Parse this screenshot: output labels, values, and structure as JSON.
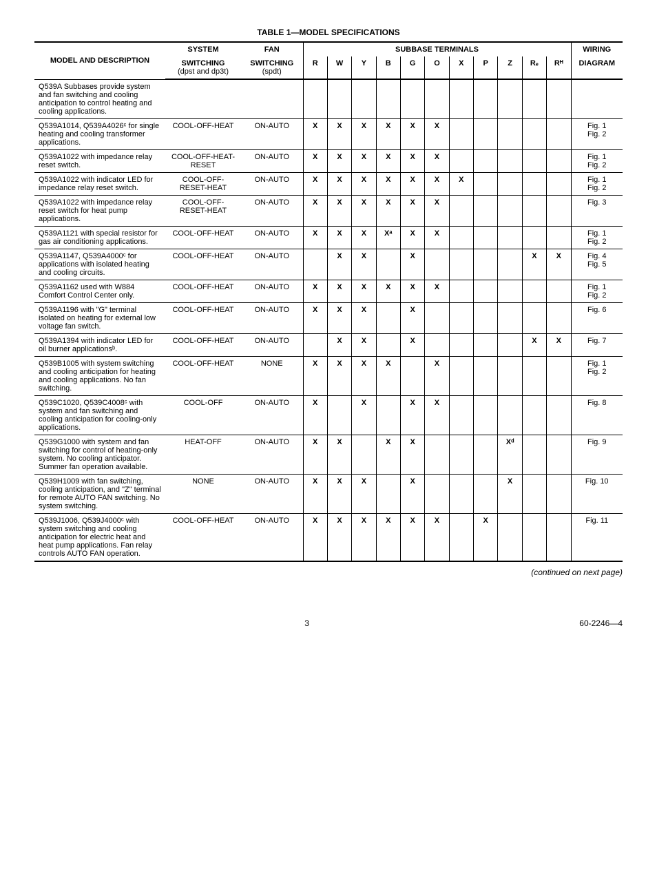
{
  "tableTitle": "TABLE 1—MODEL SPECIFICATIONS",
  "headers": {
    "model": "MODEL AND DESCRIPTION",
    "systemTop": "SYSTEM",
    "systemMid": "SWITCHING",
    "systemBot": "(dpst and dp3t)",
    "fanTop": "FAN",
    "fanMid": "SWITCHING",
    "fanBot": "(spdt)",
    "subbase": "SUBBASE TERMINALS",
    "wiringTop": "WIRING",
    "wiringBot": "DIAGRAM"
  },
  "terminalCols": [
    "R",
    "W",
    "Y",
    "B",
    "G",
    "O",
    "X",
    "P",
    "Z",
    "Rₑ",
    "Rᴴ"
  ],
  "rows": [
    {
      "model": "Q539A Subbases provide system and fan switching and cooling anticipation to control heating and cooling applications.",
      "system": "",
      "fan": "",
      "terms": [
        "",
        "",
        "",
        "",
        "",
        "",
        "",
        "",
        "",
        "",
        ""
      ],
      "wiring": ""
    },
    {
      "model": "Q539A1014, Q539A4026ᶜ for single heating and cooling transformer applications.",
      "system": "COOL-OFF-HEAT",
      "fan": "ON-AUTO",
      "terms": [
        "X",
        "X",
        "X",
        "X",
        "X",
        "X",
        "",
        "",
        "",
        "",
        ""
      ],
      "wiring": "Fig. 1\nFig. 2"
    },
    {
      "model": "Q539A1022 with impedance relay reset switch.",
      "system": "COOL-OFF-HEAT-RESET",
      "fan": "ON-AUTO",
      "terms": [
        "X",
        "X",
        "X",
        "X",
        "X",
        "X",
        "",
        "",
        "",
        "",
        ""
      ],
      "wiring": "Fig. 1\nFig. 2"
    },
    {
      "model": "Q539A1022 with indicator LED for impedance relay reset switch.",
      "system": "COOL-OFF-RESET-HEAT",
      "fan": "ON-AUTO",
      "terms": [
        "X",
        "X",
        "X",
        "X",
        "X",
        "X",
        "X",
        "",
        "",
        "",
        ""
      ],
      "wiring": "Fig. 1\nFig. 2"
    },
    {
      "model": "Q539A1022 with impedance relay reset switch for heat pump applications.",
      "system": "COOL-OFF-RESET-HEAT",
      "fan": "ON-AUTO",
      "terms": [
        "X",
        "X",
        "X",
        "X",
        "X",
        "X",
        "",
        "",
        "",
        "",
        ""
      ],
      "wiring": "Fig. 3"
    },
    {
      "model": "Q539A1121 with special resistor for gas air conditioning applications.",
      "system": "COOL-OFF-HEAT",
      "fan": "ON-AUTO",
      "terms": [
        "X",
        "X",
        "X",
        "Xᵃ",
        "X",
        "X",
        "",
        "",
        "",
        "",
        ""
      ],
      "wiring": "Fig. 1\nFig. 2"
    },
    {
      "model": "Q539A1147, Q539A4000ᶜ for applications with isolated heating and cooling circuits.",
      "system": "COOL-OFF-HEAT",
      "fan": "ON-AUTO",
      "terms": [
        "",
        "X",
        "X",
        "",
        "X",
        "",
        "",
        "",
        "",
        "X",
        "X"
      ],
      "wiring": "Fig. 4\nFig. 5"
    },
    {
      "model": "Q539A1162 used with W884 Comfort Control Center only.",
      "system": "COOL-OFF-HEAT",
      "fan": "ON-AUTO",
      "terms": [
        "X",
        "X",
        "X",
        "X",
        "X",
        "X",
        "",
        "",
        "",
        "",
        ""
      ],
      "wiring": "Fig. 1\nFig. 2"
    },
    {
      "model": "Q539A1196 with \"G\" terminal isolated on heating for external low voltage fan switch.",
      "system": "COOL-OFF-HEAT",
      "fan": "ON-AUTO",
      "terms": [
        "X",
        "X",
        "X",
        "",
        "X",
        "",
        "",
        "",
        "",
        "",
        ""
      ],
      "wiring": "Fig. 6"
    },
    {
      "model": "Q539A1394 with indicator LED for oil burner applicationsᵇ.",
      "system": "COOL-OFF-HEAT",
      "fan": "ON-AUTO",
      "terms": [
        "",
        "X",
        "X",
        "",
        "X",
        "",
        "",
        "",
        "",
        "X",
        "X"
      ],
      "wiring": "Fig. 7"
    },
    {
      "model": "Q539B1005 with system switching and cooling anticipation for heating and cooling applications. No fan switching.",
      "system": "COOL-OFF-HEAT",
      "fan": "NONE",
      "terms": [
        "X",
        "X",
        "X",
        "X",
        "",
        "X",
        "",
        "",
        "",
        "",
        ""
      ],
      "wiring": "Fig. 1\nFig. 2"
    },
    {
      "model": "Q539C1020, Q539C4008ᶜ with system and fan switching and cooling anticipation for cooling-only applications.",
      "system": "COOL-OFF",
      "fan": "ON-AUTO",
      "terms": [
        "X",
        "",
        "X",
        "",
        "X",
        "X",
        "",
        "",
        "",
        "",
        ""
      ],
      "wiring": "Fig. 8"
    },
    {
      "model": "Q539G1000 with system and fan switching for control of heating-only system. No cooling anticipator. Summer fan operation available.",
      "system": "HEAT-OFF",
      "fan": "ON-AUTO",
      "terms": [
        "X",
        "X",
        "",
        "X",
        "X",
        "",
        "",
        "",
        "Xᵈ",
        "",
        ""
      ],
      "wiring": "Fig. 9"
    },
    {
      "model": "Q539H1009 with fan switching, cooling anticipation, and \"Z\" terminal for remote AUTO FAN switching. No system switching.",
      "system": "NONE",
      "fan": "ON-AUTO",
      "terms": [
        "X",
        "X",
        "X",
        "",
        "X",
        "",
        "",
        "",
        "X",
        "",
        ""
      ],
      "wiring": "Fig. 10"
    },
    {
      "model": "Q539J1006, Q539J4000ᶜ with system switching and cooling anticipation for electric heat and heat pump applications. Fan relay controls AUTO FAN operation.",
      "system": "COOL-OFF-HEAT",
      "fan": "ON-AUTO",
      "terms": [
        "X",
        "X",
        "X",
        "X",
        "X",
        "X",
        "",
        "X",
        "",
        "",
        ""
      ],
      "wiring": "Fig. 11"
    }
  ],
  "continuedText": "(continued on next page)",
  "pageNumber": "3",
  "docNumber": "60-2246—4"
}
